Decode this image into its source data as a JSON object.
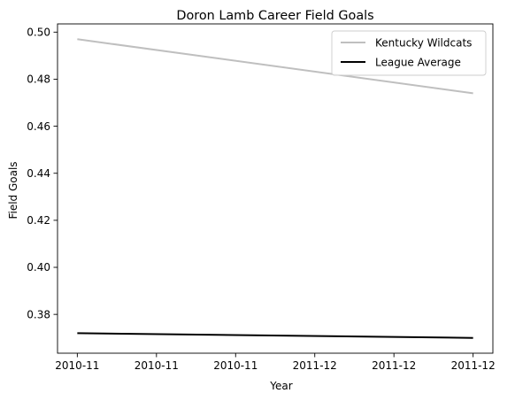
{
  "chart_data": {
    "type": "line",
    "title": "Doron Lamb Career Field Goals",
    "xlabel": "Year",
    "ylabel": "Field Goals",
    "x": [
      0,
      1
    ],
    "xlim": [
      -0.05,
      1.05
    ],
    "ylim": [
      0.3635,
      0.5035
    ],
    "xticks": [
      {
        "value": 0.0,
        "label": "2010-11"
      },
      {
        "value": 0.2,
        "label": "2010-11"
      },
      {
        "value": 0.4,
        "label": "2010-11"
      },
      {
        "value": 0.6,
        "label": "2011-12"
      },
      {
        "value": 0.8,
        "label": "2011-12"
      },
      {
        "value": 1.0,
        "label": "2011-12"
      }
    ],
    "yticks": [
      {
        "value": 0.38,
        "label": "0.38"
      },
      {
        "value": 0.4,
        "label": "0.40"
      },
      {
        "value": 0.42,
        "label": "0.42"
      },
      {
        "value": 0.44,
        "label": "0.44"
      },
      {
        "value": 0.46,
        "label": "0.46"
      },
      {
        "value": 0.48,
        "label": "0.48"
      },
      {
        "value": 0.5,
        "label": "0.50"
      }
    ],
    "series": [
      {
        "name": "Kentucky Wildcats",
        "values": [
          0.497,
          0.474
        ],
        "color": "#bfbfbf"
      },
      {
        "name": "League Average",
        "values": [
          0.372,
          0.37
        ],
        "color": "#000000"
      }
    ],
    "legend": "top-right",
    "grid": false
  }
}
